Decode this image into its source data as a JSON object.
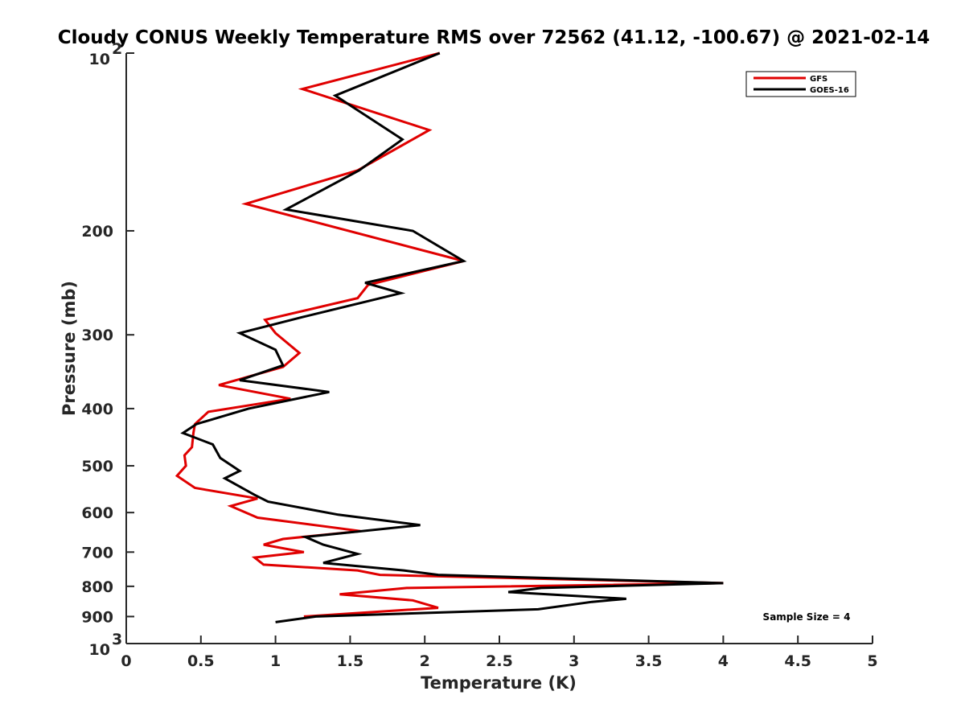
{
  "chart_data": {
    "type": "line",
    "title": "Cloudy CONUS Weekly Temperature RMS over 72562 (41.12, -100.67) @ 2021-02-14",
    "xlabel": "Temperature (K)",
    "ylabel": "Pressure (mb)",
    "xlim": [
      0,
      5
    ],
    "ylim": [
      1000,
      100
    ],
    "y_scale": "log",
    "y_reversed": true,
    "grid": false,
    "legend_position": "top-right",
    "x_ticks": [
      {
        "value": 0,
        "label": "0"
      },
      {
        "value": 0.5,
        "label": "0.5"
      },
      {
        "value": 1,
        "label": "1"
      },
      {
        "value": 1.5,
        "label": "1.5"
      },
      {
        "value": 2,
        "label": "2"
      },
      {
        "value": 2.5,
        "label": "2.5"
      },
      {
        "value": 3,
        "label": "3"
      },
      {
        "value": 3.5,
        "label": "3.5"
      },
      {
        "value": 4,
        "label": "4"
      },
      {
        "value": 4.5,
        "label": "4.5"
      },
      {
        "value": 5,
        "label": "5"
      }
    ],
    "y_ticks": [
      {
        "value": 100,
        "base": "10",
        "exp": "2"
      },
      {
        "value": 200,
        "base": "200",
        "exp": ""
      },
      {
        "value": 300,
        "base": "300",
        "exp": ""
      },
      {
        "value": 400,
        "base": "400",
        "exp": ""
      },
      {
        "value": 500,
        "base": "500",
        "exp": ""
      },
      {
        "value": 600,
        "base": "600",
        "exp": ""
      },
      {
        "value": 700,
        "base": "700",
        "exp": ""
      },
      {
        "value": 800,
        "base": "800",
        "exp": ""
      },
      {
        "value": 900,
        "base": "900",
        "exp": ""
      },
      {
        "value": 1000,
        "base": "10",
        "exp": "3"
      }
    ],
    "series": [
      {
        "name": "GFS",
        "color": "#e00000",
        "points": [
          [
            2.1,
            100
          ],
          [
            1.18,
            115
          ],
          [
            2.03,
            135
          ],
          [
            1.55,
            158
          ],
          [
            0.8,
            180
          ],
          [
            2.26,
            225
          ],
          [
            1.62,
            247
          ],
          [
            1.55,
            260
          ],
          [
            0.93,
            283
          ],
          [
            1.0,
            298
          ],
          [
            1.16,
            322
          ],
          [
            1.05,
            340
          ],
          [
            0.62,
            365
          ],
          [
            1.1,
            385
          ],
          [
            0.55,
            405
          ],
          [
            0.46,
            425
          ],
          [
            0.45,
            440
          ],
          [
            0.44,
            465
          ],
          [
            0.39,
            480
          ],
          [
            0.4,
            500
          ],
          [
            0.34,
            520
          ],
          [
            0.46,
            545
          ],
          [
            0.88,
            568
          ],
          [
            0.7,
            585
          ],
          [
            0.88,
            612
          ],
          [
            1.57,
            645
          ],
          [
            1.05,
            665
          ],
          [
            0.92,
            680
          ],
          [
            1.19,
            700
          ],
          [
            0.86,
            715
          ],
          [
            0.92,
            735
          ],
          [
            1.55,
            752
          ],
          [
            1.7,
            765
          ],
          [
            4.0,
            790
          ],
          [
            1.88,
            805
          ],
          [
            1.43,
            825
          ],
          [
            1.92,
            845
          ],
          [
            2.09,
            870
          ],
          [
            1.19,
            900
          ]
        ]
      },
      {
        "name": "GOES-16",
        "color": "#000000",
        "points": [
          [
            2.1,
            100
          ],
          [
            1.4,
            118
          ],
          [
            1.85,
            140
          ],
          [
            1.56,
            158
          ],
          [
            1.07,
            184
          ],
          [
            1.92,
            200
          ],
          [
            2.26,
            225
          ],
          [
            1.6,
            245
          ],
          [
            1.84,
            255
          ],
          [
            1.18,
            280
          ],
          [
            0.76,
            298
          ],
          [
            1.0,
            318
          ],
          [
            1.05,
            338
          ],
          [
            0.76,
            358
          ],
          [
            1.36,
            375
          ],
          [
            0.82,
            400
          ],
          [
            0.47,
            425
          ],
          [
            0.38,
            440
          ],
          [
            0.58,
            460
          ],
          [
            0.63,
            485
          ],
          [
            0.76,
            510
          ],
          [
            0.66,
            525
          ],
          [
            0.86,
            560
          ],
          [
            0.95,
            575
          ],
          [
            1.42,
            605
          ],
          [
            1.97,
            630
          ],
          [
            1.2,
            660
          ],
          [
            1.32,
            680
          ],
          [
            1.55,
            705
          ],
          [
            1.32,
            730
          ],
          [
            1.86,
            752
          ],
          [
            2.09,
            765
          ],
          [
            4.0,
            790
          ],
          [
            2.78,
            805
          ],
          [
            2.56,
            818
          ],
          [
            3.35,
            840
          ],
          [
            3.12,
            850
          ],
          [
            2.76,
            875
          ],
          [
            1.27,
            900
          ],
          [
            1.0,
            920
          ]
        ]
      }
    ],
    "annotation": "Sample Size = 4"
  }
}
